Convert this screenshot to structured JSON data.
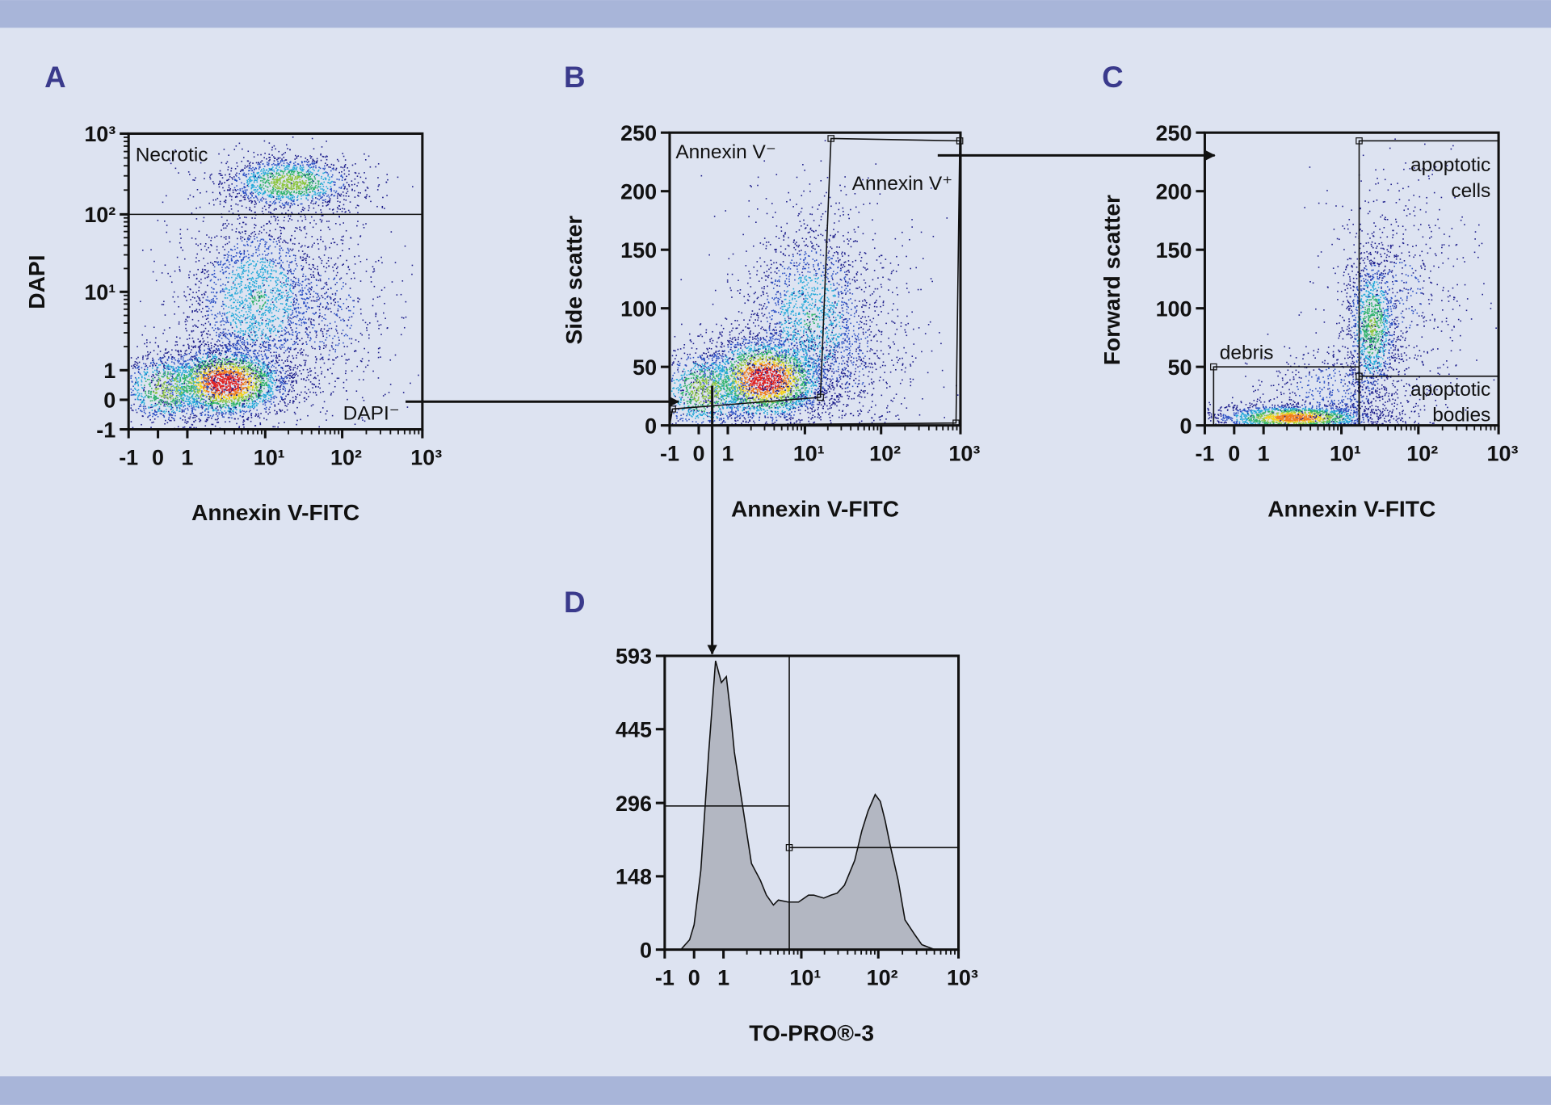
{
  "colors": {
    "background": "#dde3f1",
    "band": "#a8b5d9",
    "panel_letter": "#3a3a8c",
    "histogram_fill": "#b3b7c2",
    "density": [
      "#1c1c8a",
      "#2b4fc4",
      "#22a8d8",
      "#2fb36a",
      "#8cc63f",
      "#f2d21b",
      "#f07d1a",
      "#e02020"
    ]
  },
  "chart_data": [
    {
      "id": "A",
      "letter": "A",
      "type": "scatter",
      "xlabel": "Annexin V-FITC",
      "ylabel": "DAPI",
      "x_scale": "biexponential",
      "y_scale": "biexponential",
      "x_ticks": [
        {
          "value": -1,
          "label": "-1"
        },
        {
          "value": 0,
          "label": "0"
        },
        {
          "value": 1,
          "label": "1"
        },
        {
          "value": 10,
          "label": "10¹"
        },
        {
          "value": 100,
          "label": "10²"
        },
        {
          "value": 1000,
          "label": "10³"
        }
      ],
      "y_ticks": [
        {
          "value": -1,
          "label": "-1"
        },
        {
          "value": 0,
          "label": "0"
        },
        {
          "value": 1,
          "label": "1"
        },
        {
          "value": 10,
          "label": "10¹"
        },
        {
          "value": 100,
          "label": "10²"
        },
        {
          "value": 1000,
          "label": "10³"
        }
      ],
      "xlim": [
        -1,
        1000
      ],
      "ylim": [
        -1,
        1000
      ],
      "gates": [
        {
          "type": "hline",
          "y": 100
        }
      ],
      "gate_labels": [
        "Necrotic",
        "DAPI⁻"
      ],
      "populations": [
        {
          "x": 3,
          "y": 0.6,
          "sx_dec": 0.45,
          "sy_dec": 0.25,
          "weight": 1.0,
          "n": 2600
        },
        {
          "x": 0.3,
          "y": 0.4,
          "sx_dec": 0.35,
          "sy_dec": 0.25,
          "weight": 0.6,
          "n": 900
        },
        {
          "x": 20,
          "y": 250,
          "sx_dec": 0.45,
          "sy_dec": 0.18,
          "weight": 0.6,
          "n": 1400
        },
        {
          "x": 8,
          "y": 8,
          "sx_dec": 0.5,
          "sy_dec": 0.6,
          "weight": 0.35,
          "n": 2200
        },
        {
          "x": 60,
          "y": 5,
          "sx_dec": 0.5,
          "sy_dec": 0.7,
          "weight": 0.15,
          "n": 500
        }
      ]
    },
    {
      "id": "B",
      "letter": "B",
      "type": "scatter",
      "xlabel": "Annexin V-FITC",
      "ylabel": "Side scatter",
      "x_scale": "biexponential",
      "y_scale": "linear",
      "x_ticks": [
        {
          "value": -1,
          "label": "-1"
        },
        {
          "value": 0,
          "label": "0"
        },
        {
          "value": 1,
          "label": "1"
        },
        {
          "value": 10,
          "label": "10¹"
        },
        {
          "value": 100,
          "label": "10²"
        },
        {
          "value": 1000,
          "label": "10³"
        }
      ],
      "y_ticks": [
        {
          "value": 0,
          "label": "0"
        },
        {
          "value": 50,
          "label": "50"
        },
        {
          "value": 100,
          "label": "100"
        },
        {
          "value": 150,
          "label": "150"
        },
        {
          "value": 200,
          "label": "200"
        },
        {
          "value": 250,
          "label": "250"
        }
      ],
      "xlim": [
        -1,
        1000
      ],
      "ylim": [
        0,
        250
      ],
      "gates": [
        {
          "type": "polygon",
          "points": [
            [
              -0.9,
              14
            ],
            [
              16,
              24
            ],
            [
              22,
              245
            ],
            [
              980,
              243
            ],
            [
              880,
              2
            ],
            [
              -1,
              0
            ]
          ]
        }
      ],
      "gate_labels": [
        "Annexin V⁻",
        "Annexin V⁺"
      ],
      "populations": [
        {
          "x": 3,
          "y": 40,
          "sx_dec": 0.45,
          "sy": 20,
          "weight": 1.0,
          "n": 2800
        },
        {
          "x": 0.2,
          "y": 30,
          "sx_dec": 0.35,
          "sy": 20,
          "weight": 0.6,
          "n": 1000
        },
        {
          "x": 12,
          "y": 90,
          "sx_dec": 0.45,
          "sy": 45,
          "weight": 0.35,
          "n": 1800
        },
        {
          "x": 40,
          "y": 60,
          "sx_dec": 0.5,
          "sy": 60,
          "weight": 0.12,
          "n": 600
        }
      ]
    },
    {
      "id": "C",
      "letter": "C",
      "type": "scatter",
      "xlabel": "Annexin V-FITC",
      "ylabel": "Forward scatter",
      "x_scale": "biexponential",
      "y_scale": "linear",
      "x_ticks": [
        {
          "value": -1,
          "label": "-1"
        },
        {
          "value": 0,
          "label": "0"
        },
        {
          "value": 1,
          "label": "1"
        },
        {
          "value": 10,
          "label": "10¹"
        },
        {
          "value": 100,
          "label": "10²"
        },
        {
          "value": 1000,
          "label": "10³"
        }
      ],
      "y_ticks": [
        {
          "value": 0,
          "label": "0"
        },
        {
          "value": 50,
          "label": "50"
        },
        {
          "value": 100,
          "label": "100"
        },
        {
          "value": 150,
          "label": "150"
        },
        {
          "value": 200,
          "label": "200"
        },
        {
          "value": 250,
          "label": "250"
        }
      ],
      "xlim": [
        -1,
        1000
      ],
      "ylim": [
        0,
        250
      ],
      "gates": [
        {
          "type": "rect",
          "x": [
            17,
            1000
          ],
          "y": [
            42,
            243
          ]
        },
        {
          "type": "rect",
          "x": [
            17,
            1000
          ],
          "y": [
            0,
            42
          ]
        },
        {
          "type": "rect",
          "x": [
            -0.7,
            17
          ],
          "y": [
            0,
            50
          ]
        }
      ],
      "gate_labels": [
        "apoptotic\ncells",
        "apoptotic\nbodies",
        "debris"
      ],
      "populations": [
        {
          "x": 2.5,
          "y": 7,
          "sx_dec": 0.55,
          "sy": 6,
          "weight": 0.85,
          "n": 1800
        },
        {
          "x": 25,
          "y": 85,
          "sx_dec": 0.18,
          "sy": 35,
          "weight": 0.5,
          "n": 1300
        },
        {
          "x": 60,
          "y": 110,
          "sx_dec": 0.5,
          "sy": 60,
          "weight": 0.12,
          "n": 600
        },
        {
          "x": 8,
          "y": 30,
          "sx_dec": 0.5,
          "sy": 20,
          "weight": 0.2,
          "n": 500
        }
      ]
    },
    {
      "id": "D",
      "letter": "D",
      "type": "area",
      "xlabel": "TO-PRO®-3",
      "ylabel": "",
      "x_scale": "biexponential",
      "y_scale": "linear",
      "x_ticks": [
        {
          "value": -1,
          "label": "-1"
        },
        {
          "value": 0,
          "label": "0"
        },
        {
          "value": 1,
          "label": "1"
        },
        {
          "value": 10,
          "label": "10¹"
        },
        {
          "value": 100,
          "label": "10²"
        },
        {
          "value": 1000,
          "label": "10³"
        }
      ],
      "y_ticks": [
        {
          "value": 0,
          "label": "0"
        },
        {
          "value": 148,
          "label": "148"
        },
        {
          "value": 296,
          "label": "296"
        },
        {
          "value": 445,
          "label": "445"
        },
        {
          "value": 593,
          "label": "593"
        }
      ],
      "xlim": [
        -1,
        1000
      ],
      "ylim": [
        0,
        593
      ],
      "gates": [
        {
          "type": "vline",
          "x": 7
        },
        {
          "type": "hseg",
          "x": [
            -1,
            7
          ],
          "y": 290
        },
        {
          "type": "hseg",
          "x": [
            7,
            1000
          ],
          "y": 206
        }
      ],
      "x": [
        -0.45,
        -0.15,
        0,
        0.23,
        0.5,
        0.73,
        0.93,
        1.09,
        1.23,
        1.38,
        1.65,
        1.97,
        2.29,
        2.98,
        3.56,
        4.38,
        5.07,
        6.81,
        9.2,
        12.4,
        14.5,
        19.6,
        24.4,
        29.3,
        36.3,
        49.4,
        61.2,
        73.6,
        91.2,
        106,
        122,
        141,
        177,
        215,
        286,
        349,
        506,
        774
      ],
      "y": [
        0,
        20,
        50,
        160,
        399,
        583,
        539,
        551,
        479,
        399,
        319,
        240,
        174,
        140,
        110,
        90,
        100,
        96,
        96,
        110,
        110,
        104,
        110,
        114,
        130,
        180,
        240,
        280,
        313,
        299,
        260,
        210,
        140,
        60,
        30,
        10,
        0,
        0
      ]
    }
  ]
}
